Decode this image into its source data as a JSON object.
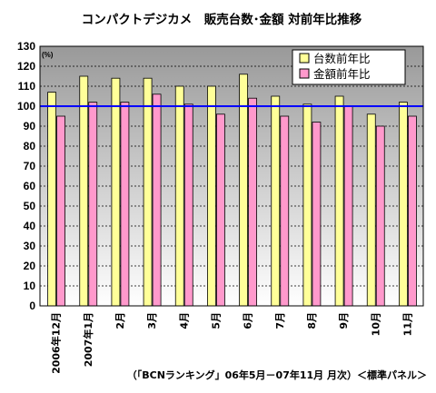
{
  "chart_data": {
    "type": "bar",
    "title": "コンパクトデジカメ　販売台数･金額 対前年比推移",
    "unit_label": "(%)",
    "categories": [
      "2006年12月",
      "2007年1月",
      "2月",
      "3月",
      "4月",
      "5月",
      "6月",
      "7月",
      "8月",
      "9月",
      "10月",
      "11月"
    ],
    "series": [
      {
        "name": "台数前年比",
        "color": "#ffff99",
        "values": [
          107,
          115,
          114,
          114,
          110,
          110,
          116,
          105,
          101,
          105,
          96,
          102
        ]
      },
      {
        "name": "金額前年比",
        "color": "#ff99cc",
        "values": [
          95,
          102,
          102,
          106,
          101,
          96,
          104,
          95,
          92,
          100,
          90,
          95
        ]
      }
    ],
    "ylim": [
      0,
      130
    ],
    "yticks": [
      0,
      10,
      20,
      30,
      40,
      50,
      60,
      70,
      80,
      90,
      100,
      110,
      120,
      130
    ],
    "reference_line": {
      "value": 100,
      "color": "#0000ff"
    },
    "grid": "dashed horizontal",
    "legend_position": "top-right",
    "background": "gradient gray",
    "source": "（「BCNランキング」06年5月－07年11月 月次）＜標準パネル＞"
  }
}
